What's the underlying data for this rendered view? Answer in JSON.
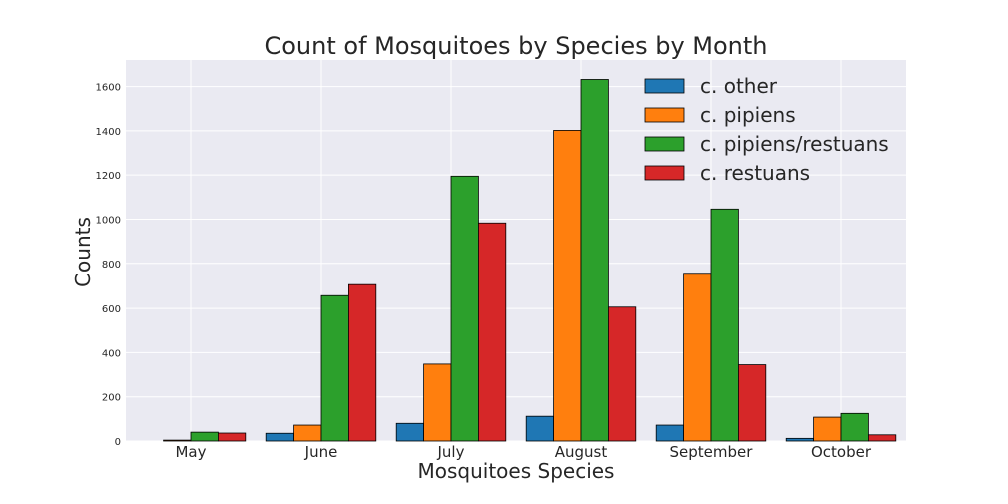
{
  "chart_data": {
    "type": "bar",
    "title": "Count of Mosquitoes by Species by Month",
    "xlabel": "Mosquitoes Species",
    "ylabel": "Counts",
    "categories": [
      "May",
      "June",
      "July",
      "August",
      "September",
      "October"
    ],
    "series": [
      {
        "name": "c. other",
        "color": "#1f77b4",
        "values": [
          0,
          35,
          80,
          112,
          72,
          12
        ]
      },
      {
        "name": "c. pipiens",
        "color": "#ff7f0e",
        "values": [
          4,
          72,
          348,
          1402,
          755,
          108
        ]
      },
      {
        "name": "c. pipiens/restuans",
        "color": "#2ca02c",
        "values": [
          40,
          658,
          1195,
          1632,
          1046,
          125
        ]
      },
      {
        "name": "c. restuans",
        "color": "#d62728",
        "values": [
          36,
          708,
          983,
          606,
          345,
          28
        ]
      }
    ],
    "ylim": [
      0,
      1720
    ],
    "yticks": [
      0,
      200,
      400,
      600,
      800,
      1000,
      1200,
      1400,
      1600
    ],
    "grid": true,
    "legend_position": "top-right"
  },
  "style": {
    "plot_background": "#eaeaf2",
    "grid_color": "#ffffff",
    "bar_edge_color": "#000000"
  }
}
